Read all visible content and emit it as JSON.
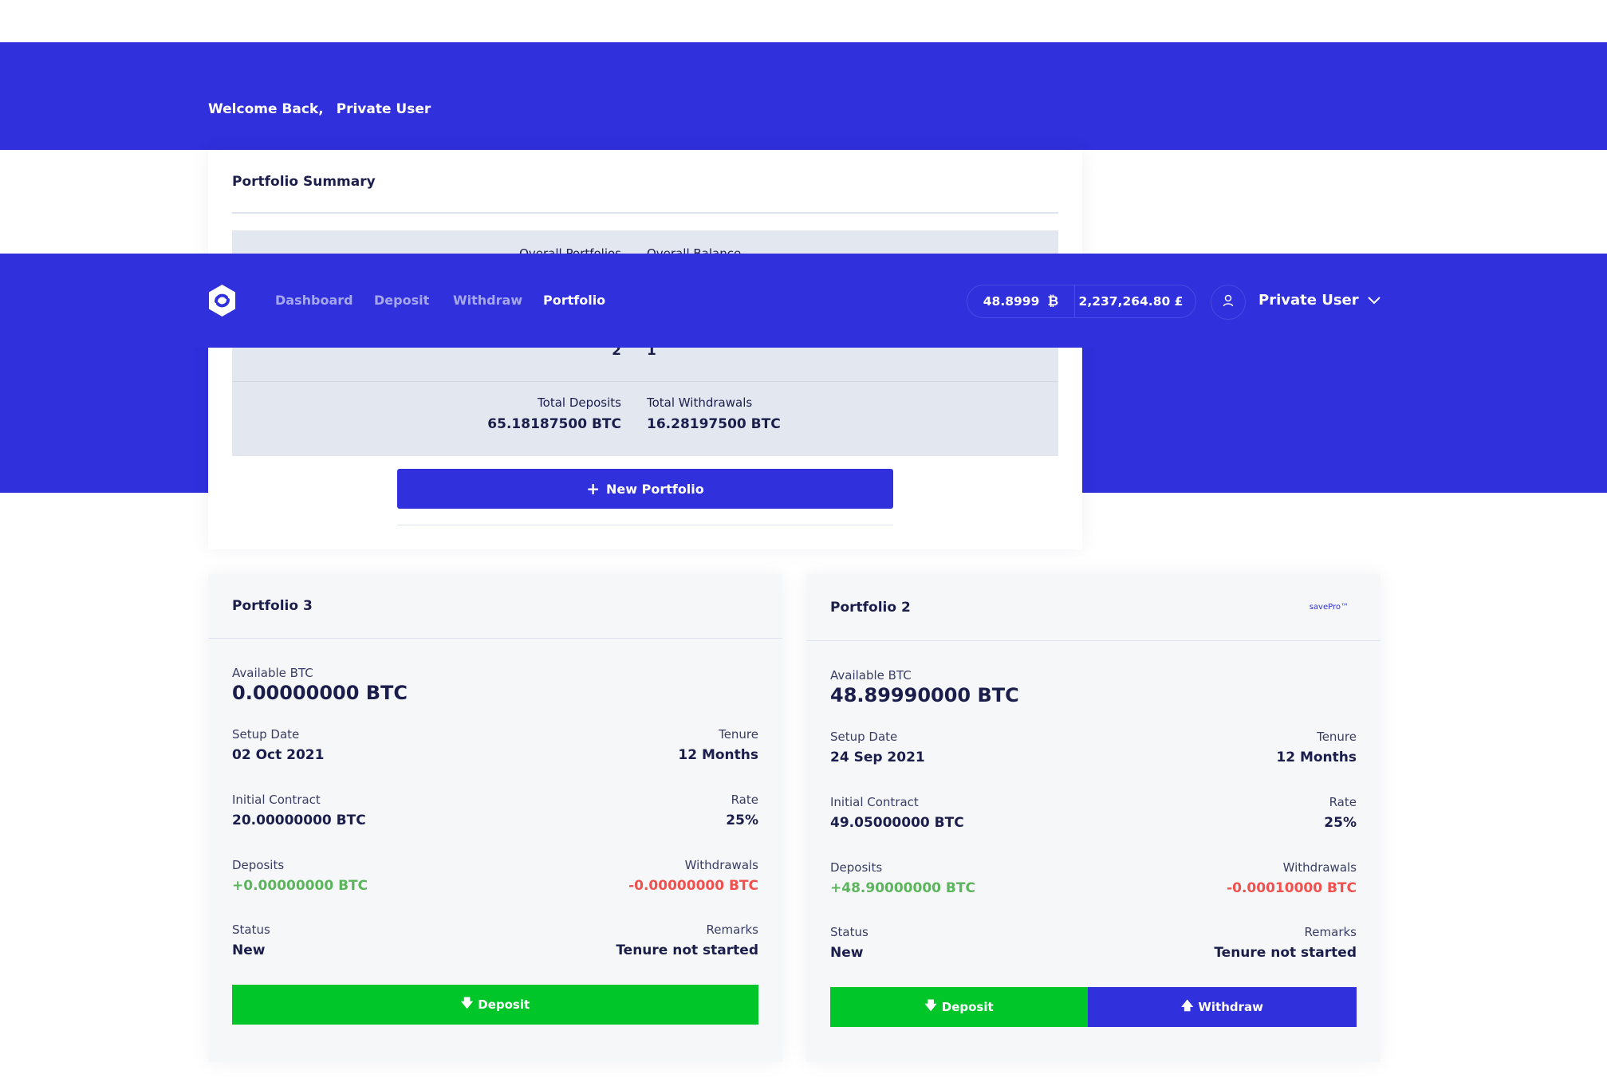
{
  "header": {
    "welcome": "Welcome Back,",
    "user": "Private User"
  },
  "summary": {
    "title": "Portfolio Summary",
    "overall_portfolios_label": "Overall Portfolios",
    "overall_balance_label": "Overall Balance",
    "overall_portfolios_count": "2",
    "overall_balance_count": "1",
    "total_deposits_label": "Total Deposits",
    "total_deposits_value": "65.18187500 BTC",
    "total_withdrawals_label": "Total Withdrawals",
    "total_withdrawals_value": "16.28197500 BTC",
    "new_portfolio_label": "New Portfolio"
  },
  "nav": {
    "links": [
      "Dashboard",
      "Deposit",
      "Withdraw",
      "Portfolio"
    ],
    "active": "Portfolio",
    "btc_balance": "48.8999",
    "gbp_balance": "2,237,264.80 £",
    "user_name": "Private User"
  },
  "portfolios": [
    {
      "title": "Portfolio 3",
      "badge": "",
      "available_label": "Available BTC",
      "available_value": "0.00000000 BTC",
      "setup_label": "Setup Date",
      "setup_value": "02 Oct 2021",
      "tenure_label": "Tenure",
      "tenure_value": "12 Months",
      "contract_label": "Initial Contract",
      "contract_value": "20.00000000 BTC",
      "rate_label": "Rate",
      "rate_value": "25%",
      "deposits_label": "Deposits",
      "deposits_value": "+0.00000000 BTC",
      "withdrawals_label": "Withdrawals",
      "withdrawals_value": "-0.00000000 BTC",
      "status_label": "Status",
      "status_value": "New",
      "remarks_label": "Remarks",
      "remarks_value": "Tenure not started",
      "deposit_button": "Deposit"
    },
    {
      "title": "Portfolio 2",
      "badge": "savePro™",
      "available_label": "Available BTC",
      "available_value": "48.89990000 BTC",
      "setup_label": "Setup Date",
      "setup_value": "24 Sep 2021",
      "tenure_label": "Tenure",
      "tenure_value": "12 Months",
      "contract_label": "Initial Contract",
      "contract_value": "49.05000000 BTC",
      "rate_label": "Rate",
      "rate_value": "25%",
      "deposits_label": "Deposits",
      "deposits_value": "+48.90000000 BTC",
      "withdrawals_label": "Withdrawals",
      "withdrawals_value": "-0.00010000 BTC",
      "status_label": "Status",
      "status_value": "New",
      "remarks_label": "Remarks",
      "remarks_value": "Tenure not started",
      "deposit_button": "Deposit",
      "withdraw_button": "Withdraw"
    }
  ],
  "colors": {
    "brand_blue": "#3030dc",
    "deposit_green": "#00c62a",
    "positive_text": "#5cb55c",
    "negative_text": "#f0514f"
  },
  "icons": [
    "logo-icon",
    "bitcoin-icon",
    "user-icon",
    "chevron-down-icon",
    "plus-icon",
    "arrow-down-icon",
    "arrow-up-icon"
  ]
}
